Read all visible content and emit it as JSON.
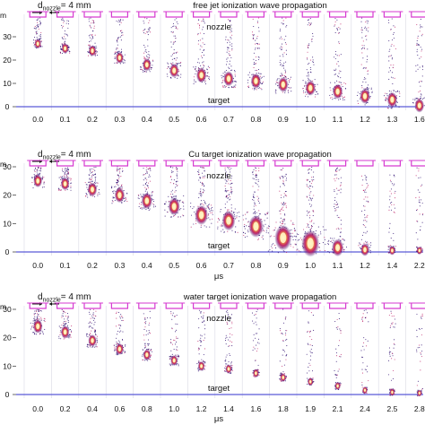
{
  "colors": {
    "nozzle": "#d63ad0",
    "target_line": "#5a5ad8",
    "frame_line": "#d8d8e4",
    "plasma_outer": "#2a0a6e",
    "plasma_mid": "#c0246a",
    "plasma_hot": "#f7a13a",
    "plasma_core": "#fff6c8"
  },
  "shared": {
    "nozzle_label": "nozzle",
    "target_label": "target",
    "time_unit": "μs",
    "d_main": "d",
    "d_sub": "nozzle",
    "d_value": "= 4 mm",
    "y_unit_fragment": "m"
  },
  "panels": [
    {
      "title": "free jet ionization wave propagation",
      "y_ticks": [
        "30",
        "20",
        "10",
        "0"
      ],
      "time_labels": [
        "0.0",
        "0.1",
        "0.2",
        "0.3",
        "0.4",
        "0.5",
        "0.6",
        "0.7",
        "0.8",
        "0.9",
        "1.0",
        "1.1",
        "1.2",
        "1.3",
        "1.6"
      ],
      "head_y": [
        27,
        25,
        24,
        21,
        18,
        15.5,
        13.5,
        12,
        11,
        9.5,
        8,
        6.5,
        4.5,
        3,
        0.5
      ],
      "head_size": [
        0.55,
        0.6,
        0.65,
        0.7,
        0.8,
        0.9,
        1.0,
        1.0,
        1.0,
        1.0,
        1.0,
        1.0,
        1.0,
        1.0,
        0.9
      ]
    },
    {
      "title": "Cu target ionization wave propagation",
      "y_ticks": [
        "30",
        "20",
        "10",
        "0"
      ],
      "time_labels": [
        "0.0",
        "0.1",
        "0.2",
        "0.3",
        "0.4",
        "0.5",
        "0.6",
        "0.7",
        "0.8",
        "0.9",
        "1.0",
        "1.1",
        "1.2",
        "1.4",
        "2.2"
      ],
      "head_y": [
        25,
        24,
        22,
        20,
        18,
        16,
        13,
        11,
        9,
        5,
        3,
        1.5,
        0.8,
        0.5,
        0.5
      ],
      "head_size": [
        0.8,
        0.8,
        0.9,
        1.0,
        1.1,
        1.2,
        1.4,
        1.4,
        1.6,
        1.9,
        2.0,
        1.2,
        0.8,
        0.5,
        0.4
      ]
    },
    {
      "title": "water target ionization wave propagation",
      "y_ticks": [
        "30",
        "20",
        "10",
        "0"
      ],
      "time_labels": [
        "0.0",
        "0.2",
        "0.4",
        "0.6",
        "0.8",
        "1.0",
        "1.2",
        "1.4",
        "1.6",
        "1.8",
        "1.9",
        "2.1",
        "2.4",
        "2.5",
        "2.8"
      ],
      "head_y": [
        24,
        22,
        19,
        16,
        14,
        12,
        10,
        9,
        7.5,
        6,
        4.5,
        3,
        1.5,
        0.8,
        0.5
      ],
      "head_size": [
        0.9,
        0.8,
        0.75,
        0.7,
        0.65,
        0.6,
        0.55,
        0.5,
        0.45,
        0.45,
        0.4,
        0.4,
        0.35,
        0.35,
        0.3
      ]
    }
  ]
}
